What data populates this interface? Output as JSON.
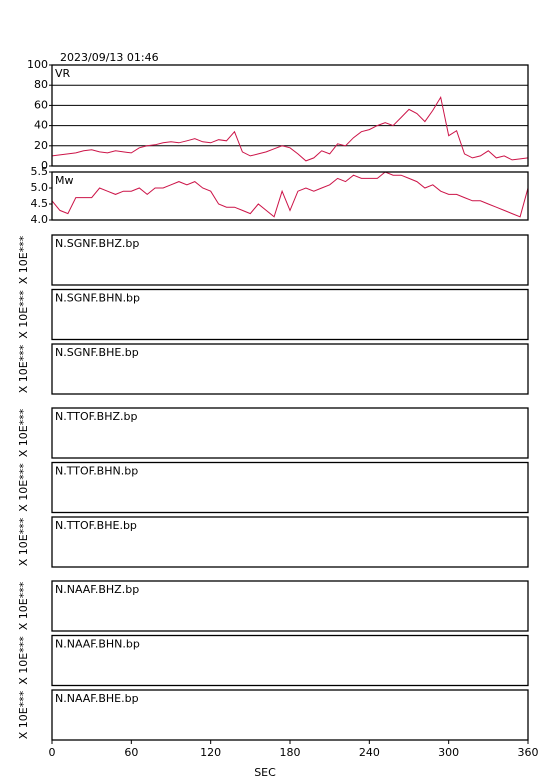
{
  "title": "2023/09/13 01:46",
  "chart_data": [
    {
      "type": "line",
      "ylabel": "VR",
      "xlim": [
        0,
        360
      ],
      "x": [
        0,
        6,
        12,
        18,
        24,
        30,
        36,
        42,
        48,
        54,
        60,
        66,
        72,
        78,
        84,
        90,
        96,
        102,
        108,
        114,
        120,
        126,
        132,
        138,
        144,
        150,
        156,
        162,
        168,
        174,
        180,
        186,
        192,
        198,
        204,
        210,
        216,
        222,
        228,
        234,
        240,
        246,
        252,
        258,
        264,
        270,
        276,
        282,
        288,
        294,
        300,
        306,
        312,
        318,
        324,
        330,
        336,
        342,
        348,
        354,
        360
      ],
      "series": [
        {
          "color": "#cc1448",
          "values": [
            10,
            11,
            12,
            13,
            15,
            16,
            14,
            13,
            15,
            14,
            13,
            18,
            20,
            21,
            23,
            24,
            23,
            25,
            27,
            24,
            23,
            26,
            25,
            34,
            14,
            10,
            12,
            14,
            17,
            20,
            18,
            12,
            5,
            8,
            15,
            12,
            22,
            20,
            28,
            34,
            36,
            40,
            43,
            40,
            48,
            56,
            52,
            44,
            55,
            68,
            30,
            35,
            12,
            8,
            10,
            15,
            8,
            10,
            6,
            7,
            8
          ]
        }
      ],
      "ylim": [
        0,
        100
      ],
      "yticks": [
        0,
        20,
        40,
        60,
        80,
        100
      ],
      "grid": true
    },
    {
      "type": "line",
      "ylabel": "Mw",
      "xlim": [
        0,
        360
      ],
      "x": [
        0,
        6,
        12,
        18,
        24,
        30,
        36,
        42,
        48,
        54,
        60,
        66,
        72,
        78,
        84,
        90,
        96,
        102,
        108,
        114,
        120,
        126,
        132,
        138,
        144,
        150,
        156,
        162,
        168,
        174,
        180,
        186,
        192,
        198,
        204,
        210,
        216,
        222,
        228,
        234,
        240,
        246,
        252,
        258,
        264,
        270,
        276,
        282,
        288,
        294,
        300,
        306,
        312,
        318,
        324,
        330,
        336,
        342,
        348,
        354,
        360
      ],
      "series": [
        {
          "color": "#cc1448",
          "values": [
            4.6,
            4.3,
            4.2,
            4.7,
            4.7,
            4.7,
            5.0,
            4.9,
            4.8,
            4.9,
            4.9,
            5.0,
            4.8,
            5.0,
            5.0,
            5.1,
            5.2,
            5.1,
            5.2,
            5.0,
            4.9,
            4.5,
            4.4,
            4.4,
            4.3,
            4.2,
            4.5,
            4.3,
            4.1,
            4.9,
            4.3,
            4.9,
            5.0,
            4.9,
            5.0,
            5.1,
            5.3,
            5.2,
            5.4,
            5.3,
            5.3,
            5.3,
            5.5,
            5.4,
            5.4,
            5.3,
            5.2,
            5.0,
            5.1,
            4.9,
            4.8,
            4.8,
            4.7,
            4.6,
            4.6,
            4.5,
            4.4,
            4.3,
            4.2,
            4.1,
            5.0
          ]
        }
      ],
      "ylim": [
        4.0,
        5.5
      ],
      "yticks": [
        {
          "value": 4.0,
          "label": "4.0"
        },
        4.5,
        {
          "value": 5.0,
          "label": "5.0"
        },
        5.5
      ],
      "grid": false
    }
  ],
  "waveforms": [
    {
      "label": "N.SGNF.BHZ.bp",
      "scale": "X 10E***"
    },
    {
      "label": "N.SGNF.BHN.bp",
      "scale": "X 10E***"
    },
    {
      "label": "N.SGNF.BHE.bp",
      "scale": "X 10E***"
    },
    {
      "label": "N.TTOF.BHZ.bp",
      "scale": "X 10E***"
    },
    {
      "label": "N.TTOF.BHN.bp",
      "scale": "X 10E***"
    },
    {
      "label": "N.TTOF.BHE.bp",
      "scale": "X 10E***"
    },
    {
      "label": "N.NAAF.BHZ.bp",
      "scale": "X 10E***"
    },
    {
      "label": "N.NAAF.BHN.bp",
      "scale": "X 10E***"
    },
    {
      "label": "N.NAAF.BHE.bp",
      "scale": "X 10E***"
    }
  ],
  "time_axis": {
    "label": "SEC",
    "xlim": [
      0,
      360
    ],
    "xticks": [
      0,
      60,
      120,
      180,
      240,
      300,
      360
    ]
  }
}
